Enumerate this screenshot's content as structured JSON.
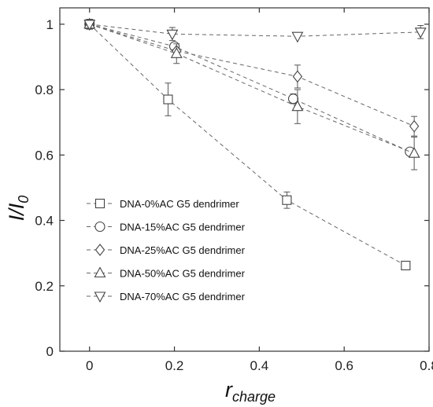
{
  "chart_data": {
    "type": "line",
    "xlabel": {
      "main": "r",
      "sub": "charge"
    },
    "ylabel": {
      "main": "I/I",
      "sub": "0"
    },
    "xlim": [
      -0.07,
      0.8
    ],
    "ylim": [
      0,
      1.05
    ],
    "xticks": [
      0,
      0.2,
      0.4,
      0.6,
      0.8
    ],
    "xtick_labels": [
      "0",
      "0.2",
      "0.4",
      "0.6",
      "0.8"
    ],
    "yticks": [
      0,
      0.2,
      0.4,
      0.6,
      0.8,
      1
    ],
    "ytick_labels": [
      "0",
      "0.2",
      "0.4",
      "0.6",
      "0.8",
      "1"
    ],
    "grid": false,
    "legend_position": "lower-left",
    "series": [
      {
        "name": "DNA-0%AC G5 dendrimer",
        "marker": "square",
        "x": [
          0,
          0.185,
          0.465,
          0.745
        ],
        "y": [
          1.0,
          0.77,
          0.462,
          0.262
        ],
        "err": [
          0.015,
          0.05,
          0.025,
          0.0
        ]
      },
      {
        "name": "DNA-15%AC G5 dendrimer",
        "marker": "circle",
        "x": [
          0,
          0.2,
          0.48,
          0.755
        ],
        "y": [
          1.0,
          0.932,
          0.772,
          0.61
        ],
        "err": [
          0.015,
          0.0,
          0.015,
          0.0
        ]
      },
      {
        "name": "DNA-25%AC G5 dendrimer",
        "marker": "diamond",
        "x": [
          0,
          0.205,
          0.49,
          0.765
        ],
        "y": [
          1.0,
          0.918,
          0.84,
          0.688
        ],
        "err": [
          0.015,
          0.0,
          0.035,
          0.03
        ]
      },
      {
        "name": "DNA-50%AC G5 dendrimer",
        "marker": "triangle-up",
        "x": [
          0,
          0.205,
          0.49,
          0.765
        ],
        "y": [
          1.0,
          0.91,
          0.748,
          0.605
        ],
        "err": [
          0.015,
          0.03,
          0.052,
          0.05
        ]
      },
      {
        "name": "DNA-70%AC G5 dendrimer",
        "marker": "triangle-down",
        "x": [
          0,
          0.195,
          0.49,
          0.78
        ],
        "y": [
          1.0,
          0.97,
          0.963,
          0.976
        ],
        "err": [
          0.015,
          0.02,
          0.0,
          0.02
        ]
      }
    ]
  }
}
